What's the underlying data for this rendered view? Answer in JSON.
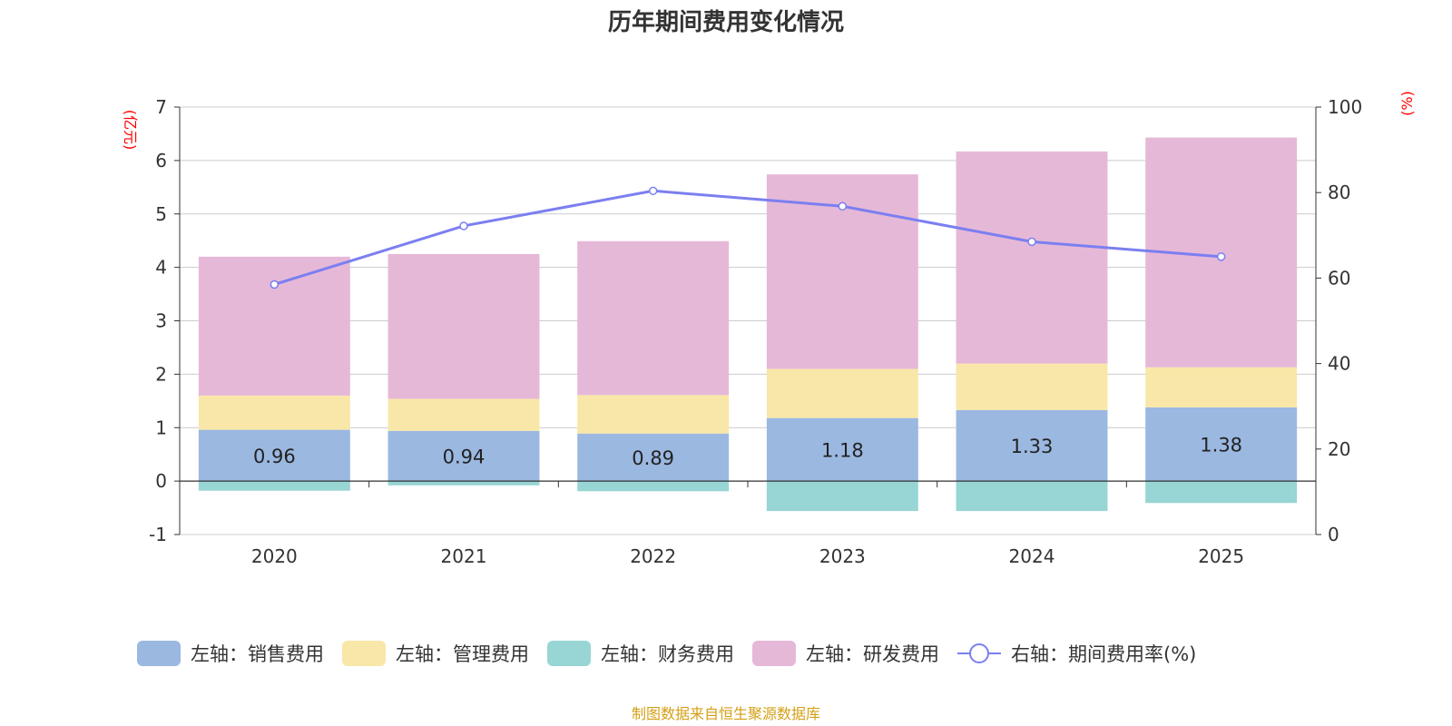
{
  "chart_data": {
    "type": "bar",
    "title": "历年期间费用变化情况",
    "categories": [
      "2020",
      "2021",
      "2022",
      "2023",
      "2024",
      "2025"
    ],
    "left_axis": {
      "unit": "(亿元)",
      "ylim": [
        -1,
        7
      ],
      "ticks": [
        "-1",
        "0",
        "1",
        "2",
        "3",
        "4",
        "5",
        "6",
        "7"
      ]
    },
    "right_axis": {
      "unit": "(%)",
      "ylim": [
        0,
        100
      ],
      "ticks": [
        "0",
        "20",
        "40",
        "60",
        "80",
        "100"
      ]
    },
    "series": [
      {
        "name": "左轴：销售费用",
        "color": "#9bb8e1",
        "values": [
          0.96,
          0.94,
          0.89,
          1.18,
          1.33,
          1.38
        ],
        "labels": [
          "0.96",
          "0.94",
          "0.89",
          "1.18",
          "1.33",
          "1.38"
        ]
      },
      {
        "name": "左轴：管理费用",
        "color": "#f8e7a8",
        "values": [
          0.64,
          0.6,
          0.72,
          0.92,
          0.87,
          0.75
        ]
      },
      {
        "name": "左轴：财务费用",
        "color": "#98d5d5",
        "values": [
          -0.18,
          -0.08,
          -0.19,
          -0.56,
          -0.56,
          -0.41
        ]
      },
      {
        "name": "左轴：研发费用",
        "color": "#e6b8d8",
        "values": [
          2.6,
          2.71,
          2.88,
          3.64,
          3.97,
          4.3
        ]
      }
    ],
    "line": {
      "name": "右轴：期间费用率(%)",
      "color": "#7b7ff0",
      "values": [
        58.5,
        72.2,
        80.4,
        76.8,
        68.5,
        65.0
      ]
    },
    "grid": true,
    "legend_position": "bottom"
  },
  "source": "制图数据来自恒生聚源数据库"
}
